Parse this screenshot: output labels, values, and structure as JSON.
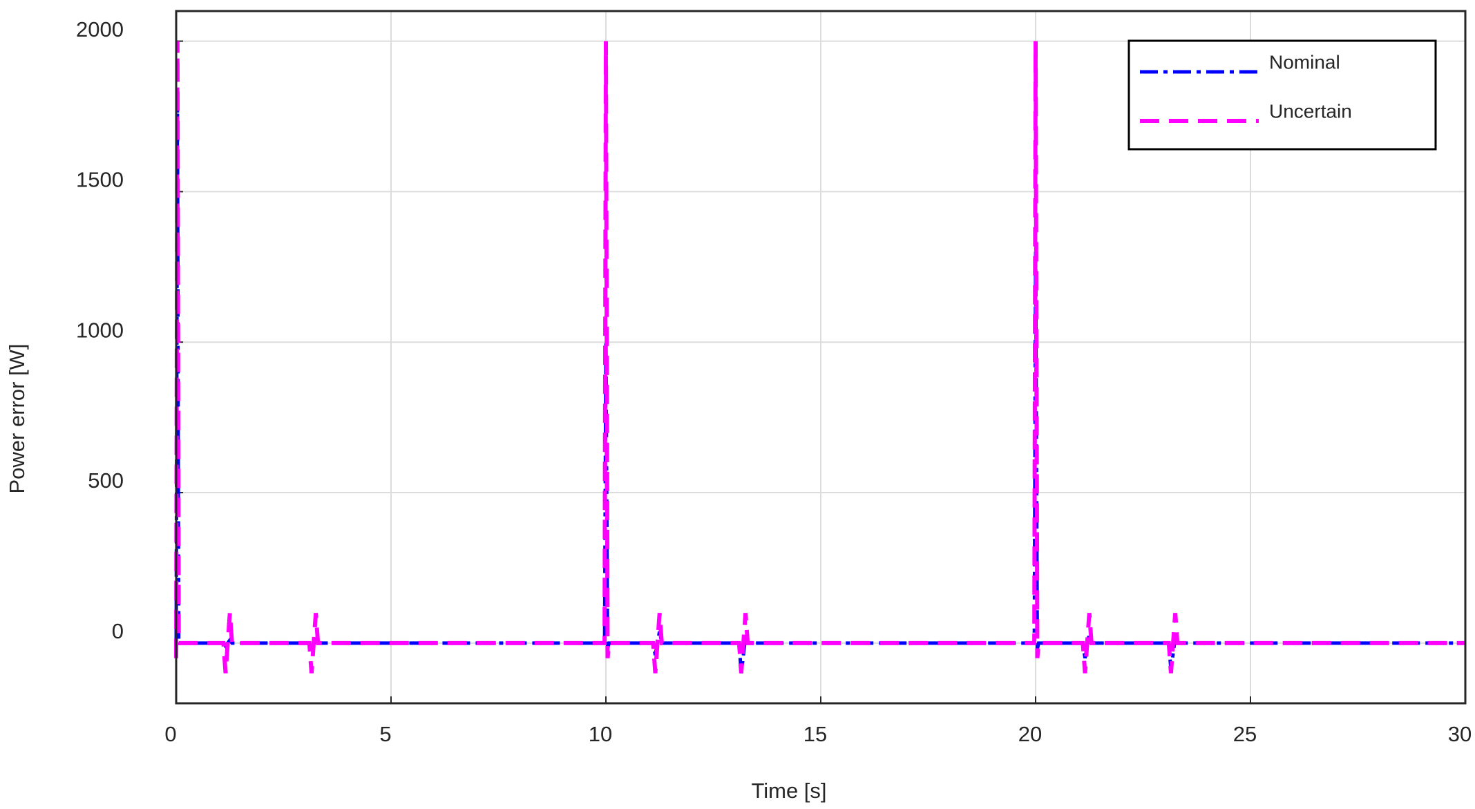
{
  "chart_data": {
    "type": "line",
    "x_label": "Time [s]",
    "y_label": "Power error [W]",
    "x": [
      0,
      0.03,
      0.06,
      1.1,
      1.15,
      1.25,
      1.3,
      3.1,
      3.15,
      3.25,
      3.3,
      9.97,
      10.0,
      10.04,
      10.07,
      11.1,
      11.15,
      11.25,
      11.3,
      13.1,
      13.15,
      13.25,
      13.3,
      19.97,
      20.0,
      20.04,
      20.07,
      21.1,
      21.15,
      21.25,
      21.3,
      23.1,
      23.15,
      23.25,
      23.3,
      30
    ],
    "series": [
      {
        "name": "Nominal",
        "color": "#0000ff",
        "dash": "dashdot",
        "values": [
          0,
          1800,
          0,
          0,
          -10,
          10,
          0,
          0,
          -10,
          10,
          0,
          0,
          1000,
          -20,
          0,
          0,
          -40,
          40,
          0,
          0,
          -100,
          20,
          0,
          0,
          1300,
          -20,
          0,
          0,
          -50,
          30,
          0,
          0,
          -90,
          20,
          0,
          0
        ]
      },
      {
        "name": "Uncertain",
        "color": "#ff00ff",
        "dash": "dashed",
        "values": [
          -50,
          2000,
          0,
          0,
          -100,
          100,
          0,
          0,
          -100,
          100,
          0,
          0,
          2000,
          -50,
          0,
          0,
          -100,
          100,
          0,
          0,
          -100,
          100,
          0,
          0,
          2000,
          -50,
          0,
          0,
          -100,
          100,
          0,
          0,
          -100,
          100,
          0,
          0
        ]
      }
    ],
    "xlim": [
      0,
      30
    ],
    "xticks": [
      0,
      5,
      10,
      15,
      20,
      25,
      30
    ],
    "ylim": [
      -200,
      2100
    ],
    "yticks": [
      0,
      500,
      1000,
      1500,
      2000
    ],
    "grid": true,
    "legend": "upper right"
  }
}
